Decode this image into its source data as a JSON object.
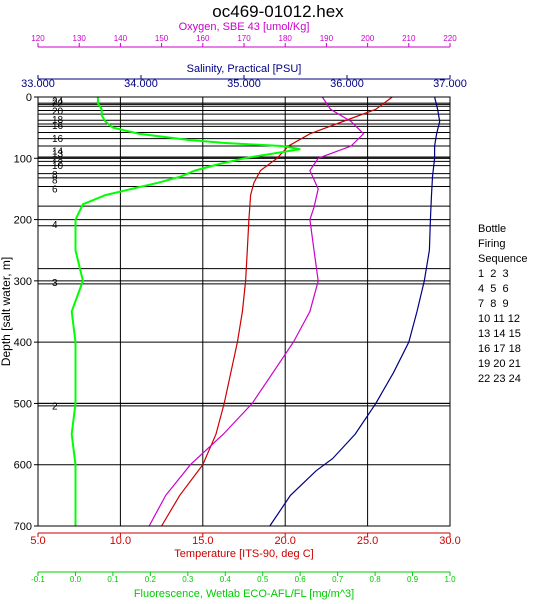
{
  "chart_data": {
    "type": "line",
    "title": "oc469-01012.hex",
    "y_axis": {
      "label": "Depth [salt water, m]",
      "range": [
        0,
        700
      ],
      "reversed": true,
      "ticks": [
        0,
        100,
        200,
        300,
        400,
        500,
        600,
        700
      ]
    },
    "axes": {
      "oxygen": {
        "label": "Oxygen, SBE 43 [umol/Kg]",
        "position": "top",
        "color": "#cc00cc",
        "range": [
          120,
          220
        ],
        "ticks": [
          120,
          130,
          140,
          150,
          160,
          170,
          180,
          190,
          200,
          210,
          220
        ],
        "tick_labels": [
          "120",
          "130",
          "140",
          "150",
          "160",
          "170",
          "180",
          "190",
          "200",
          "210",
          "220"
        ]
      },
      "salinity": {
        "label": "Salinity, Practical [PSU]",
        "position": "top",
        "color": "#000080",
        "range": [
          33,
          37
        ],
        "ticks": [
          33,
          34,
          35,
          36,
          37
        ],
        "tick_labels": [
          "33.000",
          "34.000",
          "35.000",
          "36.000",
          "37.000"
        ]
      },
      "temperature": {
        "label": "Temperature [ITS-90, deg C]",
        "position": "bottom",
        "color": "#cc0000",
        "range": [
          5,
          30
        ],
        "ticks": [
          5,
          10,
          15,
          20,
          25,
          30
        ],
        "tick_labels": [
          "5.0",
          "10.0",
          "15.0",
          "20.0",
          "25.0",
          "30.0"
        ]
      },
      "fluorescence": {
        "label": "Fluorescence, Wetlab ECO-AFL/FL [mg/m^3]",
        "position": "bottom",
        "color": "#00cc00",
        "range": [
          -0.1,
          1.0
        ],
        "ticks": [
          -0.1,
          0,
          0.1,
          0.2,
          0.3,
          0.4,
          0.5,
          0.6,
          0.7,
          0.8,
          0.9,
          1.0
        ],
        "tick_labels": [
          "-0.1",
          "0.0",
          "0.1",
          "0.2",
          "0.3",
          "0.4",
          "0.5",
          "0.6",
          "0.7",
          "0.8",
          "0.9",
          "1.0"
        ]
      }
    },
    "grid": true,
    "series": [
      {
        "axis": "salinity",
        "color": "#000080",
        "depth": [
          0,
          20,
          40,
          60,
          80,
          100,
          130,
          160,
          200,
          250,
          300,
          350,
          400,
          450,
          500,
          550,
          590,
          610,
          650,
          700
        ],
        "values": [
          36.85,
          36.88,
          36.9,
          36.87,
          36.85,
          36.85,
          36.83,
          36.82,
          36.81,
          36.8,
          36.75,
          36.68,
          36.6,
          36.45,
          36.28,
          36.08,
          35.86,
          35.7,
          35.45,
          35.25
        ]
      },
      {
        "axis": "temperature",
        "color": "#cc0000",
        "depth": [
          0,
          20,
          40,
          60,
          80,
          100,
          120,
          140,
          160,
          200,
          250,
          300,
          350,
          400,
          450,
          500,
          550,
          600,
          650,
          700
        ],
        "values": [
          26.5,
          25.5,
          23.5,
          21.5,
          20.2,
          19.5,
          18.5,
          18.1,
          17.9,
          17.8,
          17.7,
          17.6,
          17.4,
          17.1,
          16.7,
          16.3,
          15.8,
          15.0,
          13.6,
          12.5
        ]
      },
      {
        "axis": "oxygen",
        "color": "#cc00cc",
        "depth": [
          0,
          20,
          40,
          60,
          80,
          100,
          120,
          150,
          180,
          200,
          250,
          300,
          350,
          400,
          450,
          500,
          550,
          600,
          650,
          700
        ],
        "values": [
          189,
          191,
          196,
          199,
          196,
          188,
          186,
          188,
          187,
          186,
          187,
          188,
          186,
          182,
          177,
          172,
          165,
          157,
          151,
          147
        ]
      },
      {
        "axis": "fluorescence",
        "color": "#00ff00",
        "depth": [
          0,
          10,
          20,
          30,
          40,
          50,
          60,
          70,
          75,
          80,
          85,
          90,
          95,
          100,
          110,
          120,
          130,
          140,
          150,
          160,
          175,
          200,
          250,
          300,
          350,
          400,
          450,
          500,
          550,
          600,
          650,
          700
        ],
        "values": [
          0.06,
          0.06,
          0.07,
          0.07,
          0.08,
          0.1,
          0.17,
          0.3,
          0.4,
          0.55,
          0.6,
          0.55,
          0.5,
          0.45,
          0.38,
          0.32,
          0.28,
          0.22,
          0.15,
          0.08,
          0.02,
          0.0,
          0.0,
          0.02,
          -0.01,
          0.0,
          0.0,
          0.0,
          -0.01,
          0.0,
          0.0,
          0.0
        ]
      }
    ],
    "bottle_firing": {
      "depths": [
        10,
        12,
        15,
        22,
        28,
        38,
        44,
        48,
        58,
        68,
        80,
        98,
        100,
        105,
        112,
        125,
        132,
        146,
        178,
        210,
        280,
        305,
        500,
        504
      ],
      "label_depths": [
        6,
        9,
        22,
        36,
        46,
        67,
        87,
        91,
        106,
        111,
        126,
        135,
        149,
        207,
        302,
        503
      ],
      "label_numbers": [
        "24",
        "22",
        "20",
        "18",
        "16",
        "16",
        "14",
        "13",
        "12",
        "10",
        "8",
        "8",
        "6",
        "4",
        "3",
        "2"
      ]
    },
    "legend": {
      "title_lines": [
        "Bottle",
        "Firing",
        "Sequence"
      ],
      "rows": [
        "1  2  3",
        "4  5  6",
        "7  8  9",
        "10 11 12",
        "13 14 15",
        "16 17 18",
        "19 20 21",
        "22 23 24"
      ]
    }
  }
}
